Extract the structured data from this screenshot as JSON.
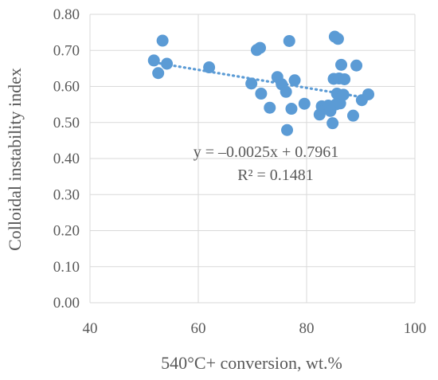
{
  "chart_data": {
    "type": "scatter",
    "xlabel": "540°C+ conversion, wt.%",
    "ylabel": "Colloidal instability index",
    "xlim": [
      40,
      100
    ],
    "ylim": [
      0.0,
      0.8
    ],
    "xticks": [
      "40",
      "60",
      "80",
      "100"
    ],
    "yticks": [
      "0.00",
      "0.10",
      "0.20",
      "0.30",
      "0.40",
      "0.50",
      "0.60",
      "0.70",
      "0.80"
    ],
    "grid": "both",
    "marker_color": "#5B9BD5",
    "trendline": {
      "type": "linear",
      "slope": -0.0025,
      "intercept": 0.7961,
      "x_range": [
        52,
        91.5
      ],
      "style": "dotted",
      "color": "#5B9BD5",
      "equation": "y = –0.0025x + 0.7961",
      "r_squared": "R² = 0.1481"
    },
    "series": [
      {
        "points": [
          [
            51.8,
            0.672
          ],
          [
            52.6,
            0.637
          ],
          [
            53.4,
            0.727
          ],
          [
            54.2,
            0.663
          ],
          [
            62.0,
            0.653
          ],
          [
            69.8,
            0.608
          ],
          [
            70.8,
            0.701
          ],
          [
            71.4,
            0.707
          ],
          [
            71.6,
            0.58
          ],
          [
            73.2,
            0.541
          ],
          [
            74.6,
            0.626
          ],
          [
            75.4,
            0.606
          ],
          [
            76.2,
            0.585
          ],
          [
            76.4,
            0.479
          ],
          [
            76.8,
            0.726
          ],
          [
            77.2,
            0.538
          ],
          [
            77.8,
            0.617
          ],
          [
            79.6,
            0.552
          ],
          [
            82.4,
            0.522
          ],
          [
            82.8,
            0.545
          ],
          [
            83.6,
            0.54
          ],
          [
            84.0,
            0.547
          ],
          [
            84.4,
            0.532
          ],
          [
            84.8,
            0.498
          ],
          [
            85.0,
            0.621
          ],
          [
            85.2,
            0.738
          ],
          [
            85.4,
            0.55
          ],
          [
            85.6,
            0.58
          ],
          [
            85.8,
            0.732
          ],
          [
            86.0,
            0.622
          ],
          [
            86.2,
            0.553
          ],
          [
            86.4,
            0.66
          ],
          [
            86.8,
            0.577
          ],
          [
            87.0,
            0.62
          ],
          [
            88.6,
            0.519
          ],
          [
            89.2,
            0.658
          ],
          [
            90.2,
            0.562
          ],
          [
            91.4,
            0.578
          ]
        ]
      }
    ]
  }
}
